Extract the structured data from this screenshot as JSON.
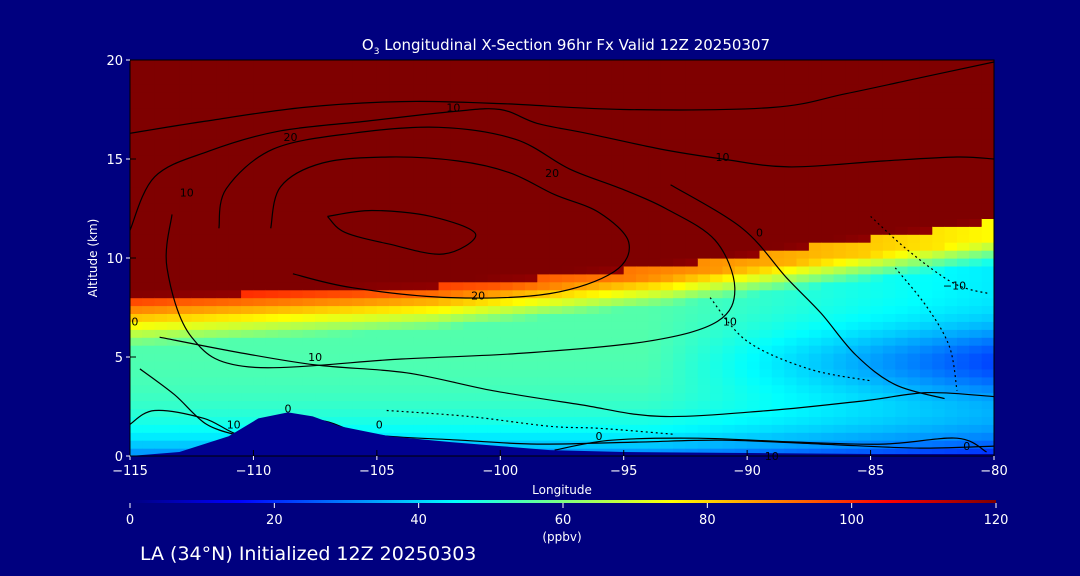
{
  "chart_data": {
    "type": "heatmap",
    "title_prefix": "O",
    "title_subscript": "3",
    "title_rest": " Longitudinal X-Section 96hr  Fx Valid 12Z 20250307",
    "xlabel": "Longitude",
    "ylabel": "Altitude (km)",
    "xlim": [
      -115,
      -80
    ],
    "ylim": [
      0,
      20
    ],
    "xticks": [
      -115,
      -110,
      -105,
      -100,
      -95,
      -90,
      -85,
      -80
    ],
    "xtick_labels": [
      "−115",
      "−110",
      "−105",
      "−100",
      "−95",
      "−90",
      "−85",
      "−80"
    ],
    "yticks": [
      0,
      5,
      10,
      15,
      20
    ],
    "ytick_labels": [
      "0",
      "5",
      "10",
      "15",
      "20"
    ],
    "colorbar": {
      "min": 0,
      "max": 120,
      "ticks": [
        0,
        20,
        40,
        60,
        80,
        100,
        120
      ],
      "tick_labels": [
        "0",
        "20",
        "40",
        "60",
        "80",
        "100",
        "120"
      ],
      "unit": "(ppbv)",
      "colors": [
        "#00007f",
        "#0000ff",
        "#007fff",
        "#00ffff",
        "#7fff7f",
        "#ffff00",
        "#ff7f00",
        "#ff0000",
        "#7f0000"
      ]
    },
    "contour_labels": [
      {
        "text": "10",
        "lon": -101.9,
        "alt": 17.6
      },
      {
        "text": "20",
        "lon": -108.5,
        "alt": 16.1
      },
      {
        "text": "10",
        "lon": -112.7,
        "alt": 13.3
      },
      {
        "text": "20",
        "lon": -97.9,
        "alt": 14.3
      },
      {
        "text": "10",
        "lon": -91.0,
        "alt": 15.1
      },
      {
        "text": "0",
        "lon": -89.5,
        "alt": 11.3
      },
      {
        "text": "20",
        "lon": -100.9,
        "alt": 8.1
      },
      {
        "text": "10",
        "lon": -90.7,
        "alt": 6.8
      },
      {
        "text": "10",
        "lon": -107.5,
        "alt": 5.0
      },
      {
        "text": "−10",
        "lon": -81.6,
        "alt": 8.6
      },
      {
        "text": "0",
        "lon": -114.8,
        "alt": 6.8
      },
      {
        "text": "10",
        "lon": -110.8,
        "alt": 1.6
      },
      {
        "text": "0",
        "lon": -108.6,
        "alt": 2.4
      },
      {
        "text": "0",
        "lon": -104.9,
        "alt": 1.6
      },
      {
        "text": "0",
        "lon": -96.0,
        "alt": 1.0
      },
      {
        "text": "10",
        "lon": -89.0,
        "alt": 0.0
      },
      {
        "text": "0",
        "lon": -81.1,
        "alt": 0.5
      }
    ]
  },
  "footer": "LA (34°N) Initialized 12Z 20250303"
}
